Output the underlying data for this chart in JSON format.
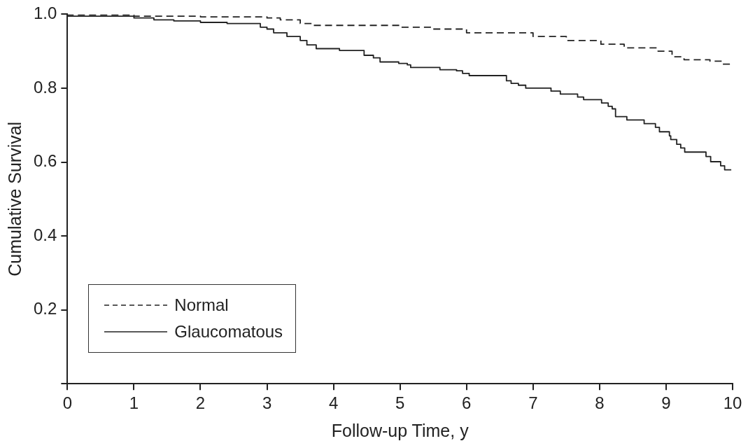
{
  "chart_data": {
    "type": "step",
    "xlabel": "Follow-up Time, y",
    "ylabel": "Cumulative Survival",
    "xlim": [
      0,
      10
    ],
    "xticks": [
      0,
      1,
      2,
      3,
      4,
      5,
      6,
      7,
      8,
      9,
      10
    ],
    "ylim": [
      0,
      1
    ],
    "yticks": [
      {
        "value": 0,
        "label": null
      },
      {
        "value": 0.2,
        "label": "0.2"
      },
      {
        "value": 0.4,
        "label": "0.4"
      },
      {
        "value": 0.6,
        "label": "0.6"
      },
      {
        "value": 0.8,
        "label": "0.8"
      },
      {
        "value": 1,
        "label": "1.0"
      }
    ],
    "grid": false,
    "legend": "bottom left",
    "marker": "none",
    "series": [
      {
        "name": "Normal",
        "color": "#222222",
        "line_style": "dashed",
        "x": [
          0,
          1.0,
          2.0,
          3.0,
          3.2,
          3.5,
          3.7,
          5.0,
          5.5,
          6.0,
          7.0,
          7.5,
          8.02,
          8.37,
          8.88,
          9.09,
          9.27,
          9.66,
          9.84,
          10
        ],
        "values": [
          1.0,
          0.998,
          0.995,
          0.993,
          0.99,
          0.985,
          0.975,
          0.97,
          0.965,
          0.96,
          0.95,
          0.94,
          0.929,
          0.919,
          0.909,
          0.9,
          0.885,
          0.877,
          0.873,
          0.865
        ]
      },
      {
        "name": "Glaucomatous",
        "color": "#222222",
        "line_style": "solid",
        "x": [
          0,
          1.0,
          1.3,
          1.6,
          2.0,
          2.4,
          2.9,
          3.0,
          3.1,
          3.3,
          3.5,
          3.6,
          3.74,
          4.09,
          4.46,
          4.6,
          4.7,
          4.98,
          5.11,
          5.16,
          5.6,
          5.85,
          5.94,
          6.04,
          6.6,
          6.67,
          6.78,
          6.89,
          7.27,
          7.41,
          7.67,
          7.76,
          8.03,
          8.13,
          8.19,
          8.24,
          8.41,
          8.67,
          8.84,
          8.9,
          9.05,
          9.07,
          9.16,
          9.22,
          9.28,
          9.6,
          9.67,
          9.82,
          9.88,
          9.98
        ],
        "values": [
          1.0,
          0.995,
          0.99,
          0.985,
          0.982,
          0.978,
          0.975,
          0.965,
          0.96,
          0.95,
          0.94,
          0.929,
          0.917,
          0.907,
          0.902,
          0.889,
          0.882,
          0.871,
          0.867,
          0.863,
          0.856,
          0.85,
          0.847,
          0.84,
          0.834,
          0.82,
          0.813,
          0.808,
          0.8,
          0.792,
          0.784,
          0.776,
          0.769,
          0.76,
          0.751,
          0.744,
          0.723,
          0.714,
          0.704,
          0.694,
          0.682,
          0.671,
          0.661,
          0.648,
          0.638,
          0.627,
          0.615,
          0.601,
          0.59,
          0.579
        ]
      }
    ]
  }
}
